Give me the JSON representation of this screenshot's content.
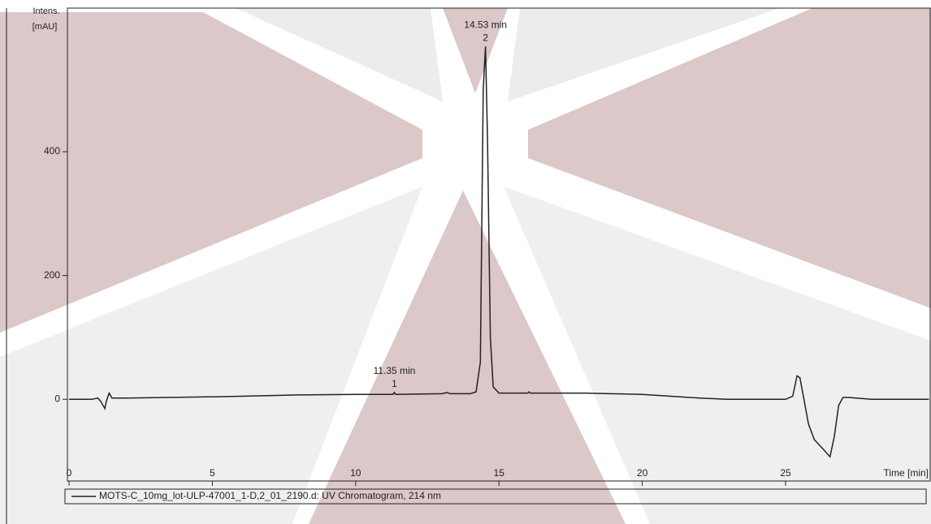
{
  "chart_data": {
    "type": "line",
    "ylabel": [
      "Intens.",
      "[mAU]"
    ],
    "xlabel": "Time [min]",
    "x": [
      0,
      0.8,
      1.0,
      1.1,
      1.25,
      1.3,
      1.4,
      1.5,
      2,
      5,
      6,
      8,
      10,
      11.3,
      11.35,
      11.4,
      13,
      13.2,
      13.3,
      14.0,
      14.2,
      14.35,
      14.45,
      14.53,
      14.6,
      14.7,
      14.8,
      15,
      16,
      16.05,
      16.1,
      18,
      20,
      21,
      22,
      23,
      24,
      25.0,
      25.25,
      25.4,
      25.5,
      25.6,
      25.8,
      26.0,
      26.3,
      26.55,
      26.7,
      26.85,
      27.0,
      27.2,
      28,
      30
    ],
    "series": [
      {
        "name": "MOTS-C_10mg_lot-ULP-47001_1-D,2_01_2190.d: UV Chromatogram, 214 nm",
        "color": "#222222",
        "values": [
          0,
          0,
          2,
          -3,
          -15,
          -3,
          10,
          2,
          2,
          4,
          5,
          7,
          8,
          8,
          11,
          8,
          9,
          11,
          9,
          9,
          12,
          60,
          500,
          570,
          420,
          100,
          20,
          10,
          10,
          12,
          10,
          10,
          8,
          5,
          2,
          0,
          0,
          0,
          5,
          38,
          35,
          10,
          -40,
          -65,
          -80,
          -93,
          -60,
          -10,
          3,
          3,
          0,
          0
        ]
      }
    ],
    "annotations": [
      {
        "x": 14.53,
        "y": 570,
        "lines": [
          "14.53 min",
          "2"
        ]
      },
      {
        "x": 11.35,
        "y": 11,
        "lines": [
          "11.35 min",
          "1"
        ]
      }
    ],
    "xlim": [
      0,
      30
    ],
    "xticks": [
      0,
      5,
      10,
      15,
      20,
      25
    ],
    "ylim": [
      -132,
      632
    ],
    "yticks": [
      0,
      200,
      400
    ]
  }
}
